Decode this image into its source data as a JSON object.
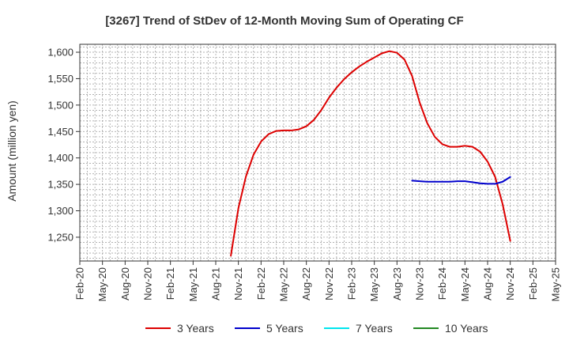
{
  "chart_data": {
    "type": "line",
    "title": "[3267]  Trend of StDev of 12-Month Moving Sum of Operating CF",
    "ylabel": "Amount (million yen)",
    "xlabel": "",
    "ylim": [
      1205,
      1615
    ],
    "yticks": [
      1250,
      1300,
      1350,
      1400,
      1450,
      1500,
      1550,
      1600
    ],
    "ytick_labels": [
      "1,250",
      "1,300",
      "1,350",
      "1,400",
      "1,450",
      "1,500",
      "1,550",
      "1,600"
    ],
    "x_start": "Feb-20",
    "x_months_total": 63,
    "xtick_labels": [
      "Feb-20",
      "May-20",
      "Aug-20",
      "Nov-20",
      "Feb-21",
      "May-21",
      "Aug-21",
      "Nov-21",
      "Feb-22",
      "May-22",
      "Aug-22",
      "Nov-22",
      "Feb-23",
      "May-23",
      "Aug-23",
      "Nov-23",
      "Feb-24",
      "May-24",
      "Aug-24",
      "Nov-24",
      "Feb-25",
      "May-25"
    ],
    "grid": true,
    "legend_position": "bottom",
    "series": [
      {
        "name": "3 Years",
        "color": "#dd0000",
        "x": [
          "Oct-21",
          "Nov-21",
          "Dec-21",
          "Jan-22",
          "Feb-22",
          "Mar-22",
          "Apr-22",
          "May-22",
          "Jun-22",
          "Jul-22",
          "Aug-22",
          "Sep-22",
          "Oct-22",
          "Nov-22",
          "Dec-22",
          "Jan-23",
          "Feb-23",
          "Mar-23",
          "Apr-23",
          "May-23",
          "Jun-23",
          "Jul-23",
          "Aug-23",
          "Sep-23",
          "Oct-23",
          "Nov-23",
          "Dec-23",
          "Jan-24",
          "Feb-24",
          "Mar-24",
          "Apr-24",
          "May-24",
          "Jun-24",
          "Jul-24",
          "Aug-24",
          "Sep-24",
          "Oct-24",
          "Nov-24"
        ],
        "values": [
          1215,
          1305,
          1365,
          1406,
          1431,
          1445,
          1451,
          1452,
          1452,
          1454,
          1460,
          1472,
          1491,
          1514,
          1533,
          1549,
          1562,
          1573,
          1582,
          1590,
          1598,
          1602,
          1599,
          1586,
          1555,
          1505,
          1466,
          1440,
          1426,
          1421,
          1421,
          1423,
          1421,
          1412,
          1393,
          1364,
          1312,
          1243
        ]
      },
      {
        "name": "5 Years",
        "color": "#0000cc",
        "x": [
          "Oct-23",
          "Nov-23",
          "Dec-23",
          "Jan-24",
          "Feb-24",
          "Mar-24",
          "Apr-24",
          "May-24",
          "Jun-24",
          "Jul-24",
          "Aug-24",
          "Sep-24",
          "Oct-24",
          "Nov-24"
        ],
        "values": [
          1357,
          1356,
          1355,
          1355,
          1355,
          1355,
          1356,
          1356,
          1354,
          1352,
          1351,
          1351,
          1355,
          1364
        ]
      },
      {
        "name": "7 Years",
        "color": "#00e5ee",
        "x": [],
        "values": []
      },
      {
        "name": "10 Years",
        "color": "#228822",
        "x": [],
        "values": []
      }
    ]
  }
}
